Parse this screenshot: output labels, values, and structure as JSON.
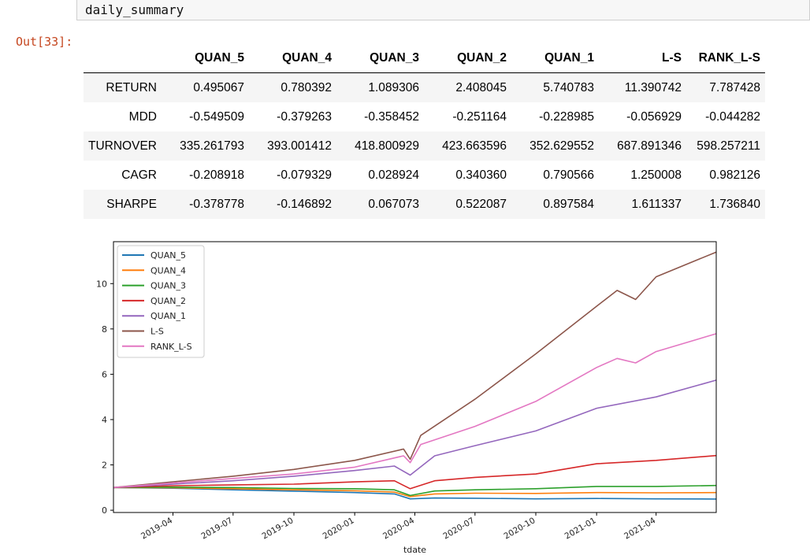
{
  "input": {
    "code": "daily_summary"
  },
  "output": {
    "prompt": "Out[33]:"
  },
  "table": {
    "columns": [
      "QUAN_5",
      "QUAN_4",
      "QUAN_3",
      "QUAN_2",
      "QUAN_1",
      "L-S",
      "RANK_L-S"
    ],
    "rows": [
      {
        "label": "RETURN",
        "values": [
          "0.495067",
          "0.780392",
          "1.089306",
          "2.408045",
          "5.740783",
          "11.390742",
          "7.787428"
        ]
      },
      {
        "label": "MDD",
        "values": [
          "-0.549509",
          "-0.379263",
          "-0.358452",
          "-0.251164",
          "-0.228985",
          "-0.056929",
          "-0.044282"
        ]
      },
      {
        "label": "TURNOVER",
        "values": [
          "335.261793",
          "393.001412",
          "418.800929",
          "423.663596",
          "352.629552",
          "687.891346",
          "598.257211"
        ]
      },
      {
        "label": "CAGR",
        "values": [
          "-0.208918",
          "-0.079329",
          "0.028924",
          "0.340360",
          "0.790566",
          "1.250008",
          "0.982126"
        ]
      },
      {
        "label": "SHARPE",
        "values": [
          "-0.378778",
          "-0.146892",
          "0.067073",
          "0.522087",
          "0.897584",
          "1.611337",
          "1.736840"
        ]
      }
    ]
  },
  "chart_data": {
    "type": "line",
    "xlabel": "tdate",
    "ylabel": "",
    "x_range": [
      "2019-01-01",
      "2021-07-01"
    ],
    "xticks": [
      "2019-04",
      "2019-07",
      "2019-10",
      "2020-01",
      "2020-04",
      "2020-07",
      "2020-10",
      "2021-01",
      "2021-04"
    ],
    "yticks": [
      0,
      2,
      4,
      6,
      8,
      10
    ],
    "ylim": [
      -0.1,
      11.85
    ],
    "legend_position": "top-left",
    "grid": false,
    "series": [
      {
        "name": "QUAN_5",
        "color": "#1f77b4",
        "points": [
          [
            "2019-01-01",
            1.0
          ],
          [
            "2019-04-01",
            0.97
          ],
          [
            "2019-07-01",
            0.9
          ],
          [
            "2019-10-01",
            0.84
          ],
          [
            "2020-01-01",
            0.78
          ],
          [
            "2020-03-01",
            0.72
          ],
          [
            "2020-03-25",
            0.5
          ],
          [
            "2020-05-01",
            0.54
          ],
          [
            "2020-07-01",
            0.53
          ],
          [
            "2020-10-01",
            0.5
          ],
          [
            "2021-01-01",
            0.52
          ],
          [
            "2021-04-01",
            0.5
          ],
          [
            "2021-07-01",
            0.495
          ]
        ]
      },
      {
        "name": "QUAN_4",
        "color": "#ff7f0e",
        "points": [
          [
            "2019-01-01",
            1.0
          ],
          [
            "2019-04-01",
            0.99
          ],
          [
            "2019-07-01",
            0.95
          ],
          [
            "2019-10-01",
            0.9
          ],
          [
            "2020-01-01",
            0.86
          ],
          [
            "2020-03-01",
            0.8
          ],
          [
            "2020-03-25",
            0.6
          ],
          [
            "2020-05-01",
            0.72
          ],
          [
            "2020-07-01",
            0.75
          ],
          [
            "2020-10-01",
            0.74
          ],
          [
            "2021-01-01",
            0.78
          ],
          [
            "2021-04-01",
            0.77
          ],
          [
            "2021-07-01",
            0.78
          ]
        ]
      },
      {
        "name": "QUAN_3",
        "color": "#2ca02c",
        "points": [
          [
            "2019-01-01",
            1.0
          ],
          [
            "2019-04-01",
            1.02
          ],
          [
            "2019-07-01",
            1.0
          ],
          [
            "2019-10-01",
            0.96
          ],
          [
            "2020-01-01",
            0.95
          ],
          [
            "2020-03-01",
            0.9
          ],
          [
            "2020-03-25",
            0.65
          ],
          [
            "2020-05-01",
            0.85
          ],
          [
            "2020-07-01",
            0.9
          ],
          [
            "2020-10-01",
            0.95
          ],
          [
            "2021-01-01",
            1.05
          ],
          [
            "2021-04-01",
            1.05
          ],
          [
            "2021-07-01",
            1.09
          ]
        ]
      },
      {
        "name": "QUAN_2",
        "color": "#d62728",
        "points": [
          [
            "2019-01-01",
            1.0
          ],
          [
            "2019-04-01",
            1.08
          ],
          [
            "2019-07-01",
            1.12
          ],
          [
            "2019-10-01",
            1.15
          ],
          [
            "2020-01-01",
            1.25
          ],
          [
            "2020-03-01",
            1.3
          ],
          [
            "2020-03-25",
            0.95
          ],
          [
            "2020-05-01",
            1.3
          ],
          [
            "2020-07-01",
            1.45
          ],
          [
            "2020-10-01",
            1.6
          ],
          [
            "2021-01-01",
            2.05
          ],
          [
            "2021-04-01",
            2.2
          ],
          [
            "2021-07-01",
            2.41
          ]
        ]
      },
      {
        "name": "QUAN_1",
        "color": "#9467bd",
        "points": [
          [
            "2019-01-01",
            1.0
          ],
          [
            "2019-04-01",
            1.15
          ],
          [
            "2019-07-01",
            1.3
          ],
          [
            "2019-10-01",
            1.5
          ],
          [
            "2020-01-01",
            1.75
          ],
          [
            "2020-03-01",
            1.95
          ],
          [
            "2020-03-25",
            1.55
          ],
          [
            "2020-05-01",
            2.4
          ],
          [
            "2020-07-01",
            2.85
          ],
          [
            "2020-10-01",
            3.5
          ],
          [
            "2021-01-01",
            4.5
          ],
          [
            "2021-04-01",
            5.0
          ],
          [
            "2021-07-01",
            5.74
          ]
        ]
      },
      {
        "name": "L-S",
        "color": "#8c564b",
        "points": [
          [
            "2019-01-01",
            1.0
          ],
          [
            "2019-04-01",
            1.25
          ],
          [
            "2019-07-01",
            1.5
          ],
          [
            "2019-10-01",
            1.8
          ],
          [
            "2020-01-01",
            2.2
          ],
          [
            "2020-03-15",
            2.7
          ],
          [
            "2020-03-25",
            2.25
          ],
          [
            "2020-04-10",
            3.3
          ],
          [
            "2020-07-01",
            4.9
          ],
          [
            "2020-10-01",
            6.9
          ],
          [
            "2021-01-01",
            9.0
          ],
          [
            "2021-02-01",
            9.7
          ],
          [
            "2021-03-01",
            9.3
          ],
          [
            "2021-04-01",
            10.3
          ],
          [
            "2021-07-01",
            11.39
          ]
        ]
      },
      {
        "name": "RANK_L-S",
        "color": "#e377c2",
        "points": [
          [
            "2019-01-01",
            1.0
          ],
          [
            "2019-04-01",
            1.2
          ],
          [
            "2019-07-01",
            1.4
          ],
          [
            "2019-10-01",
            1.6
          ],
          [
            "2020-01-01",
            1.9
          ],
          [
            "2020-03-15",
            2.4
          ],
          [
            "2020-03-25",
            2.1
          ],
          [
            "2020-04-10",
            2.9
          ],
          [
            "2020-07-01",
            3.7
          ],
          [
            "2020-10-01",
            4.8
          ],
          [
            "2021-01-01",
            6.3
          ],
          [
            "2021-02-01",
            6.7
          ],
          [
            "2021-03-01",
            6.5
          ],
          [
            "2021-04-01",
            7.0
          ],
          [
            "2021-07-01",
            7.79
          ]
        ]
      }
    ]
  }
}
